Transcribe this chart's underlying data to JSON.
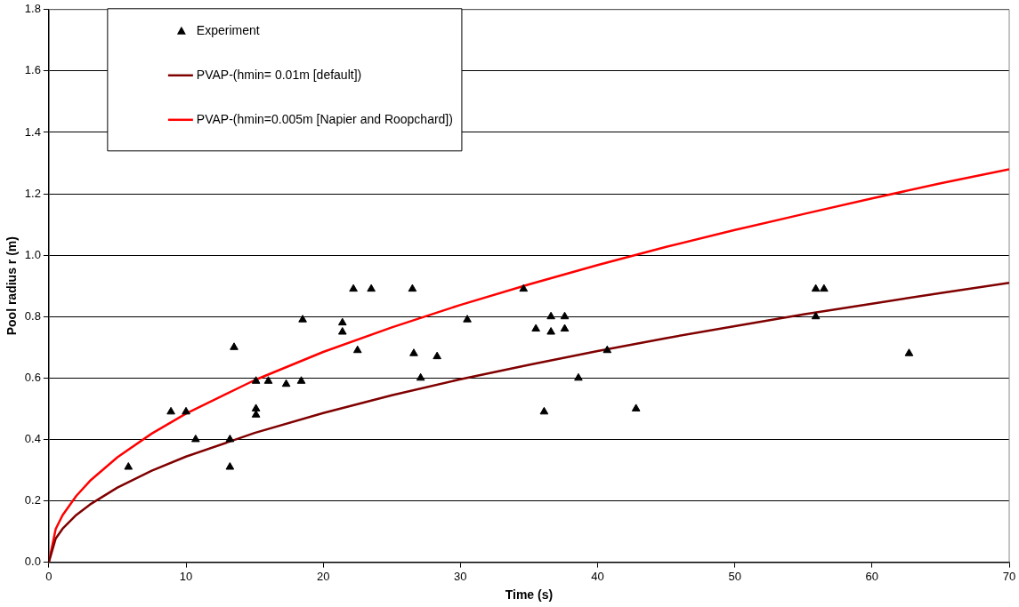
{
  "chart_data": {
    "type": "scatter",
    "xlabel": "Time (s)",
    "ylabel": "Pool radius r (m)",
    "xlim": [
      0,
      70
    ],
    "xticks": [
      0,
      10,
      20,
      30,
      40,
      50,
      60,
      70
    ],
    "ylim": [
      0,
      1.8
    ],
    "yticks": [
      {
        "value": 0,
        "label": "0.0"
      },
      {
        "value": 0.2,
        "label": "0.2"
      },
      {
        "value": 0.4,
        "label": "0.4"
      },
      {
        "value": 0.6,
        "label": "0.6"
      },
      {
        "value": 0.8,
        "label": "0.8"
      },
      {
        "value": 1,
        "label": "1.0"
      },
      {
        "value": 1.2,
        "label": "1.2"
      },
      {
        "value": 1.4,
        "label": "1.4"
      },
      {
        "value": 1.6,
        "label": "1.6"
      },
      {
        "value": 1.8,
        "label": "1.8"
      }
    ],
    "grid": "y",
    "legend": "top left",
    "series": [
      {
        "name": "Experiment",
        "type": "scatter",
        "marker": "triangle",
        "color": "#000000",
        "x": [
          5.8,
          8.9,
          10.0,
          10.7,
          13.2,
          13.2,
          13.5,
          15.1,
          15.1,
          15.1,
          16.0,
          17.3,
          18.4,
          18.5,
          21.4,
          21.4,
          22.2,
          22.5,
          23.5,
          26.5,
          26.6,
          27.1,
          28.3,
          30.5,
          34.6,
          35.5,
          36.1,
          36.6,
          36.6,
          37.6,
          37.6,
          38.6,
          40.7,
          42.8,
          55.9,
          56.5,
          55.9,
          62.7
        ],
        "values": [
          0.31,
          0.49,
          0.49,
          0.4,
          0.4,
          0.31,
          0.7,
          0.59,
          0.5,
          0.48,
          0.59,
          0.58,
          0.59,
          0.79,
          0.78,
          0.75,
          0.89,
          0.69,
          0.89,
          0.89,
          0.68,
          0.6,
          0.67,
          0.79,
          0.89,
          0.76,
          0.49,
          0.8,
          0.75,
          0.8,
          0.76,
          0.6,
          0.69,
          0.5,
          0.89,
          0.89,
          0.8,
          0.68
        ]
      },
      {
        "name": "PVAP-(hmin= 0.01m [default])",
        "type": "line",
        "marker": "none",
        "color": "#800000",
        "x": [
          0,
          0.5,
          1,
          2,
          3,
          5,
          7.5,
          10,
          15,
          20,
          25,
          30,
          35,
          40,
          45,
          50,
          55,
          60,
          65,
          70
        ],
        "values": [
          0,
          0.077,
          0.109,
          0.154,
          0.188,
          0.243,
          0.298,
          0.344,
          0.421,
          0.486,
          0.544,
          0.596,
          0.643,
          0.688,
          0.73,
          0.769,
          0.807,
          0.842,
          0.877,
          0.91
        ]
      },
      {
        "name": "PVAP-(hmin=0.005m [Napier and Roopchard])",
        "type": "line",
        "marker": "none",
        "color": "#ff0000",
        "x": [
          0,
          0.5,
          1,
          2,
          3,
          5,
          7.5,
          10,
          15,
          20,
          25,
          30,
          35,
          40,
          45,
          50,
          55,
          60,
          65,
          70
        ],
        "values": [
          0,
          0.108,
          0.153,
          0.216,
          0.265,
          0.342,
          0.419,
          0.484,
          0.593,
          0.685,
          0.765,
          0.838,
          0.905,
          0.968,
          1.027,
          1.082,
          1.134,
          1.185,
          1.234,
          1.28
        ]
      }
    ]
  }
}
